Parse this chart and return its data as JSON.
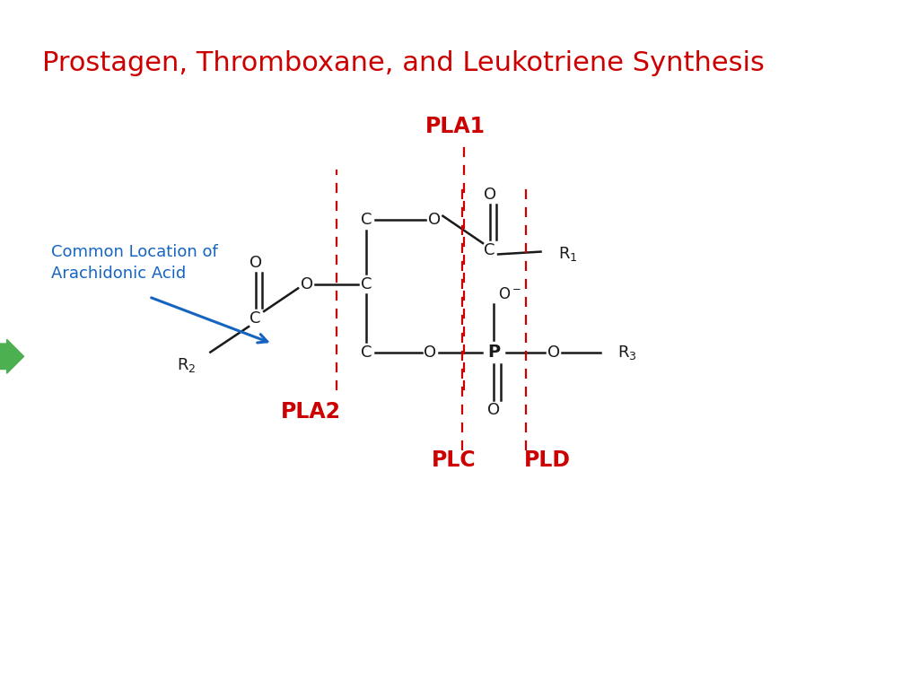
{
  "title": "Prostagen, Thromboxane, and Leukotriene Synthesis",
  "title_color": "#CC0000",
  "title_fontsize": 22,
  "subtitle": "Common Location of\nArachidonic Acid",
  "subtitle_color": "#1565C0",
  "subtitle_fontsize": 13,
  "label_PLA1": "PLA1",
  "label_PLA2": "PLA2",
  "label_PLC": "PLC",
  "label_PLD": "PLD",
  "label_color_red": "#CC0000",
  "molecule_color": "#1a1a1a",
  "dashed_color": "#CC0000",
  "arrow_color": "#1565C0",
  "green_color": "#4CAF50",
  "background": "#FFFFFF"
}
